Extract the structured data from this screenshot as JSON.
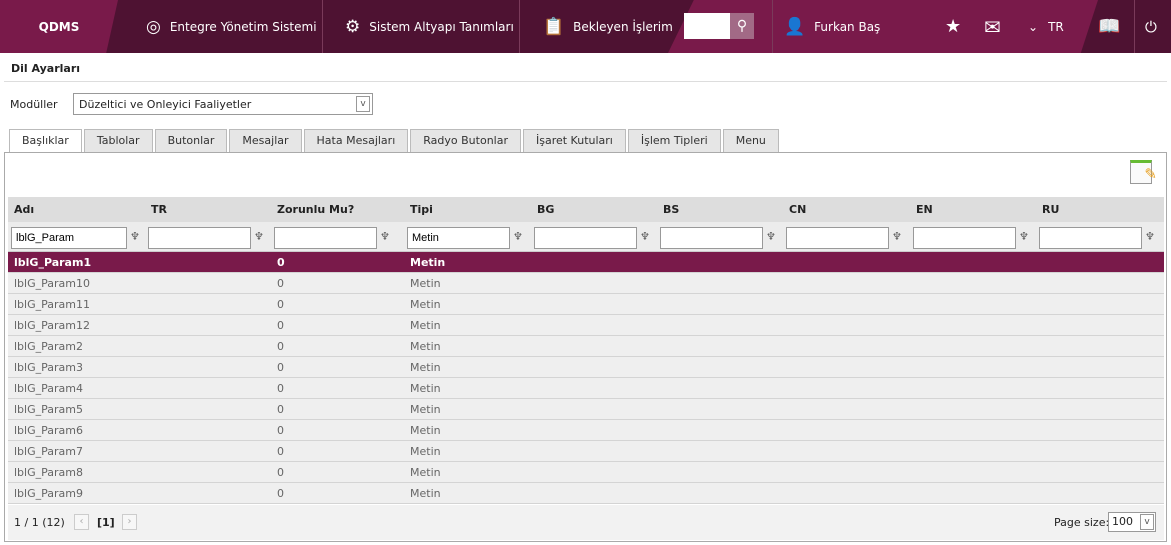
{
  "header": {
    "logo": "QDMS",
    "nav": [
      {
        "label": "Entegre Yönetim Sistemi",
        "icon": "q-logo-icon"
      },
      {
        "label": "Sistem Altyapı Tanımları",
        "icon": "gear-icon"
      },
      {
        "label": "Bekleyen İşlerim",
        "icon": "clipboard-icon"
      }
    ],
    "search_value": "",
    "user": "Furkan Baş",
    "language": "TR"
  },
  "page": {
    "title": "Dil Ayarları",
    "modules_label": "Modüller",
    "modules_selected": "Düzeltici ve Onleyici Faaliyetler"
  },
  "tabs": [
    "Başlıklar",
    "Tablolar",
    "Butonlar",
    "Mesajlar",
    "Hata Mesajları",
    "Radyo Butonlar",
    "İşaret Kutuları",
    "İşlem Tipleri",
    "Menu"
  ],
  "active_tab": 0,
  "grid": {
    "columns": [
      "Adı",
      "TR",
      "Zorunlu Mu?",
      "Tipi",
      "BG",
      "BS",
      "CN",
      "EN",
      "RU"
    ],
    "filters": [
      "lblG_Param",
      "",
      "",
      "Metin",
      "",
      "",
      "",
      "",
      ""
    ],
    "rows": [
      [
        "lblG_Param1",
        "",
        "0",
        "Metin",
        "",
        "",
        "",
        "",
        ""
      ],
      [
        "lblG_Param10",
        "",
        "0",
        "Metin",
        "",
        "",
        "",
        "",
        ""
      ],
      [
        "lblG_Param11",
        "",
        "0",
        "Metin",
        "",
        "",
        "",
        "",
        ""
      ],
      [
        "lblG_Param12",
        "",
        "0",
        "Metin",
        "",
        "",
        "",
        "",
        ""
      ],
      [
        "lblG_Param2",
        "",
        "0",
        "Metin",
        "",
        "",
        "",
        "",
        ""
      ],
      [
        "lblG_Param3",
        "",
        "0",
        "Metin",
        "",
        "",
        "",
        "",
        ""
      ],
      [
        "lblG_Param4",
        "",
        "0",
        "Metin",
        "",
        "",
        "",
        "",
        ""
      ],
      [
        "lblG_Param5",
        "",
        "0",
        "Metin",
        "",
        "",
        "",
        "",
        ""
      ],
      [
        "lblG_Param6",
        "",
        "0",
        "Metin",
        "",
        "",
        "",
        "",
        ""
      ],
      [
        "lblG_Param7",
        "",
        "0",
        "Metin",
        "",
        "",
        "",
        "",
        ""
      ],
      [
        "lblG_Param8",
        "",
        "0",
        "Metin",
        "",
        "",
        "",
        "",
        ""
      ],
      [
        "lblG_Param9",
        "",
        "0",
        "Metin",
        "",
        "",
        "",
        "",
        ""
      ]
    ],
    "selected_row": 0
  },
  "pager": {
    "info": "1 / 1 (12)",
    "current": "[1]",
    "page_size_label": "Page size:",
    "page_size": "100"
  },
  "colors": {
    "brand": "#791a4a",
    "dark": "#4e1232"
  }
}
